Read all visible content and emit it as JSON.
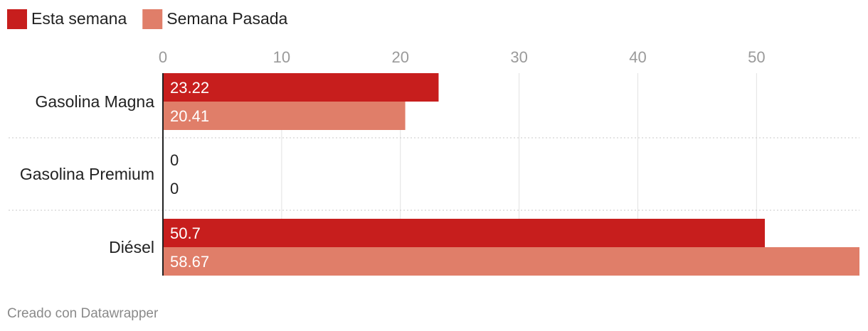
{
  "chart_data": {
    "type": "bar",
    "orientation": "horizontal",
    "categories": [
      "Gasolina Magna",
      "Gasolina Premium",
      "Diésel"
    ],
    "series": [
      {
        "name": "Esta semana",
        "values": [
          23.22,
          0,
          50.7
        ],
        "color": "#c71e1d"
      },
      {
        "name": "Semana Pasada",
        "values": [
          20.41,
          0,
          58.67
        ],
        "color": "#e07e69"
      }
    ],
    "data_labels": [
      [
        "23.22",
        "0",
        "50.7"
      ],
      [
        "20.41",
        "0",
        "58.67"
      ]
    ],
    "x_ticks": [
      0,
      10,
      20,
      30,
      40,
      50
    ],
    "xlim": [
      0,
      58.67
    ],
    "grid": "vertical",
    "legend": "top-left",
    "title": "",
    "xlabel": "",
    "ylabel": ""
  },
  "footer": {
    "credit": "Creado con Datawrapper"
  },
  "colors": {
    "grid": "#e2e2e2",
    "axis": "#222222",
    "separator": "#c8c8c8"
  }
}
